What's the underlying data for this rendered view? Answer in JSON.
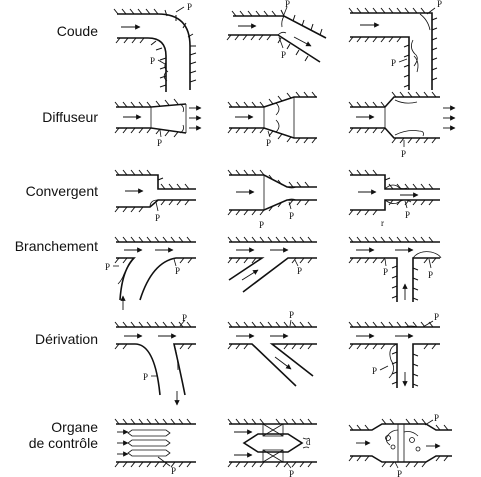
{
  "rows": [
    {
      "label": "Coude"
    },
    {
      "label": "Diffuseur"
    },
    {
      "label": "Convergent"
    },
    {
      "label": "Branchement"
    },
    {
      "label": "Dérivation"
    },
    {
      "label_lines": [
        "Organe",
        "de contrôle"
      ]
    }
  ],
  "pressure_symbol": "P",
  "secondary_symbols": {
    "r": "r",
    "d": "d"
  }
}
